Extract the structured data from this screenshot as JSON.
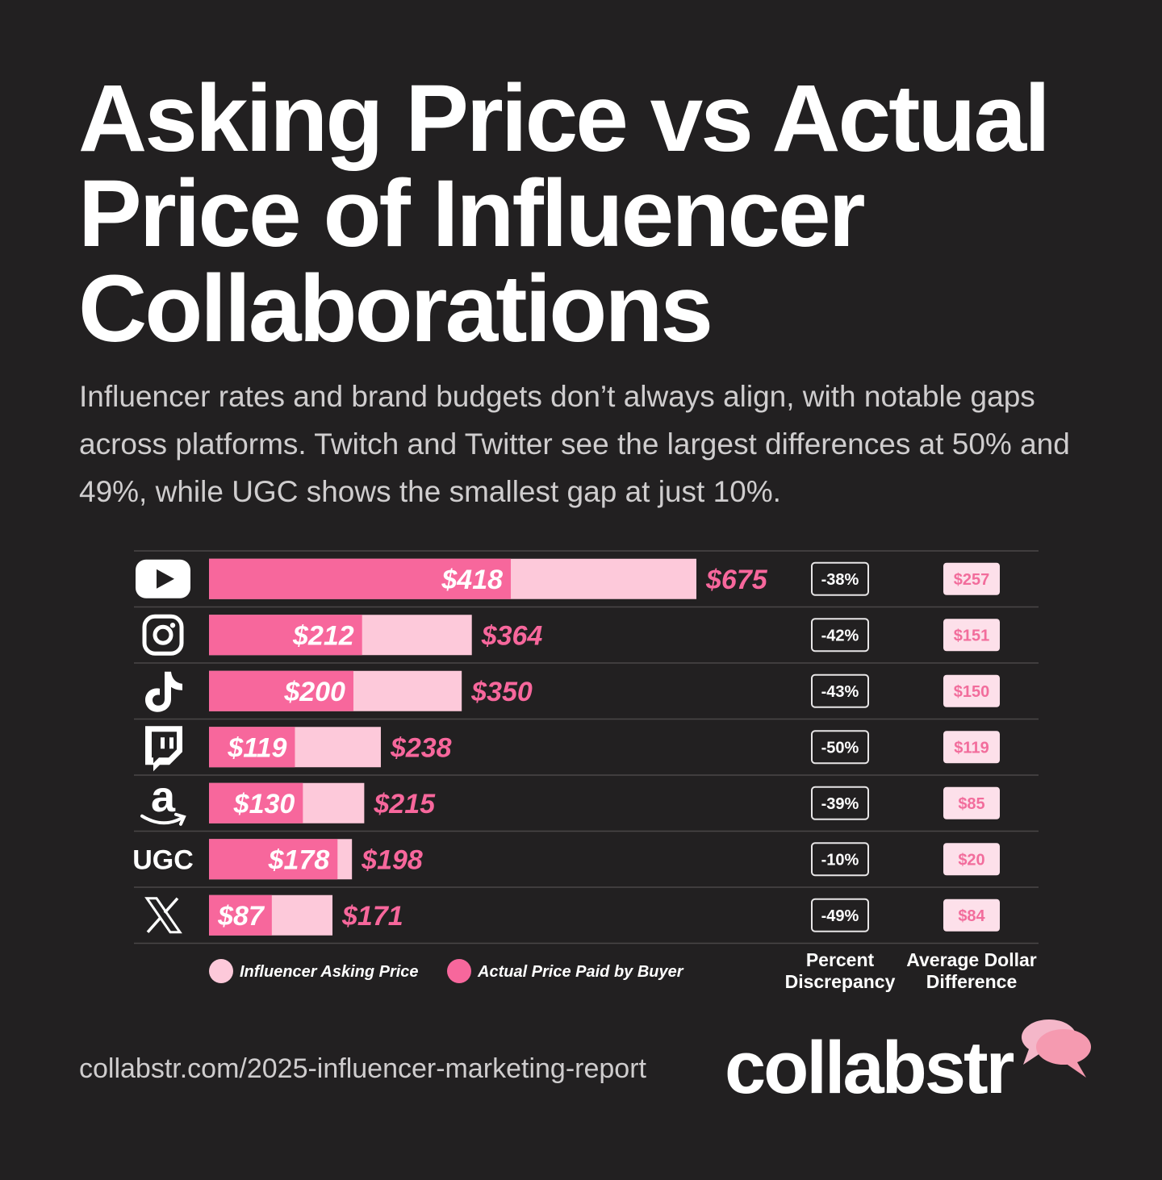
{
  "title": "Asking Price vs Actual Price of Influencer Collaborations",
  "subtitle": "Influencer rates and brand budgets don’t always align, with notable gaps across platforms. Twitch and Twitter see the largest differences at 50% and 49%, while UGC shows the smallest gap at just 10%.",
  "footer_url": "collabstr.com/2025-influencer-marketing-report",
  "brand_name": "collabstr",
  "colors": {
    "background": "#222021",
    "actual": "#f7679c",
    "asking": "#fdc9da",
    "badge_fill": "#fde0ea",
    "badge_text": "#f26d9c"
  },
  "chart_data": {
    "type": "bar",
    "orientation": "horizontal",
    "categories": [
      "YouTube",
      "Instagram",
      "TikTok",
      "Twitch",
      "Amazon",
      "UGC",
      "X"
    ],
    "category_icons": [
      "youtube-icon",
      "instagram-icon",
      "tiktok-icon",
      "twitch-icon",
      "amazon-icon",
      "ugc-label",
      "x-icon"
    ],
    "category_label_text": [
      "",
      "",
      "",
      "",
      "",
      "UGC",
      ""
    ],
    "series": [
      {
        "name": "Influencer Asking Price",
        "values": [
          675,
          364,
          350,
          238,
          215,
          198,
          171
        ],
        "labels": [
          "$675",
          "$364",
          "$350",
          "$238",
          "$215",
          "$198",
          "$171"
        ]
      },
      {
        "name": "Actual Price Paid by Buyer",
        "values": [
          418,
          212,
          200,
          119,
          130,
          178,
          87
        ],
        "labels": [
          "$418",
          "$212",
          "$200",
          "$119",
          "$130",
          "$178",
          "$87"
        ]
      }
    ],
    "percent_discrepancy": [
      "-38%",
      "-42%",
      "-43%",
      "-50%",
      "-39%",
      "-10%",
      "-49%"
    ],
    "average_dollar_difference": [
      "$257",
      "$151",
      "$150",
      "$119",
      "$85",
      "$20",
      "$84"
    ],
    "column_headers": {
      "percent": [
        "Percent",
        "Discrepancy"
      ],
      "dollar": [
        "Average Dollar",
        "Difference"
      ]
    },
    "xlim": [
      0,
      675
    ],
    "legend_position": "bottom-left"
  }
}
